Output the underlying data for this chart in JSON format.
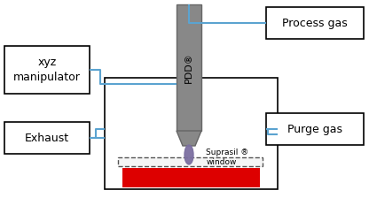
{
  "bg_color": "#ffffff",
  "box_edge_color": "#000000",
  "blue_line_color": "#5ba3d0",
  "gray_body_color": "#888888",
  "gray_edge_color": "#666666",
  "purple_color": "#7b6fa0",
  "red_color": "#dd0000",
  "dashed_color": "#555555",
  "labels": {
    "xyz_manipulator": "xyz\nmanipulator",
    "exhaust": "Exhaust",
    "process_gas": "Process gas",
    "purge_gas": "Purge gas",
    "pdd": "PDD®",
    "suprasil": "Suprasil ®\nwindow"
  },
  "figsize": [
    4.16,
    2.24
  ],
  "dpi": 100
}
